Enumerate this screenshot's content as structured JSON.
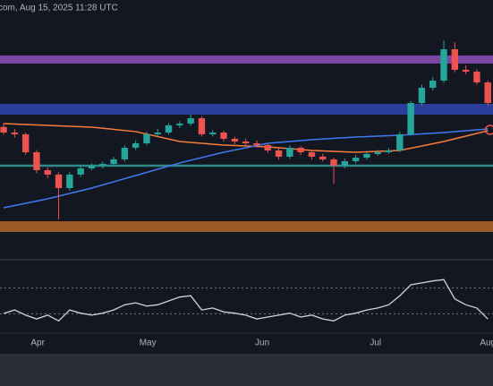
{
  "chart_data": {
    "type": "candlestick",
    "title": "com, Aug 15, 2025 11:28 UTC",
    "xlim": [
      -0.33,
      44.47
    ],
    "xticks": [
      {
        "value": 3.1,
        "label": "Apr"
      },
      {
        "value": 13.1,
        "label": "May"
      },
      {
        "value": 23.5,
        "label": "Jun"
      },
      {
        "value": 33.8,
        "label": "Jul"
      },
      {
        "value": 44,
        "label": "Aug"
      }
    ],
    "ylim": [
      1300,
      4000
    ],
    "up_color": "#26a69a",
    "down_color": "#ef5350",
    "open": [
      2680,
      2622,
      2604,
      2417,
      2231,
      2185,
      2045,
      2185,
      2250,
      2278,
      2296,
      2343,
      2464,
      2510,
      2604,
      2622,
      2697,
      2715,
      2771,
      2604,
      2622,
      2557,
      2529,
      2510,
      2492,
      2436,
      2371,
      2464,
      2417,
      2371,
      2343,
      2278,
      2324,
      2361,
      2399,
      2417,
      2436,
      2604,
      2929,
      3088,
      3162,
      3488,
      3274,
      3255,
      3143
    ],
    "high": [
      2720,
      2660,
      2620,
      2440,
      2260,
      2210,
      2210,
      2280,
      2300,
      2320,
      2370,
      2490,
      2540,
      2630,
      2660,
      2720,
      2740,
      2810,
      2790,
      2650,
      2640,
      2580,
      2560,
      2540,
      2510,
      2460,
      2490,
      2480,
      2440,
      2400,
      2360,
      2350,
      2390,
      2420,
      2440,
      2460,
      2630,
      2950,
      3120,
      3200,
      3580,
      3560,
      3320,
      3280,
      3160
    ],
    "low": [
      2600,
      2570,
      2390,
      2200,
      2150,
      1720,
      2020,
      2160,
      2230,
      2250,
      2270,
      2320,
      2440,
      2490,
      2580,
      2600,
      2670,
      2690,
      2580,
      2580,
      2530,
      2500,
      2490,
      2470,
      2410,
      2340,
      2350,
      2390,
      2340,
      2320,
      2090,
      2250,
      2300,
      2340,
      2380,
      2400,
      2420,
      2590,
      2900,
      3060,
      3140,
      3250,
      3230,
      3120,
      2900
    ],
    "close": [
      2622,
      2604,
      2417,
      2231,
      2185,
      2045,
      2185,
      2250,
      2278,
      2296,
      2343,
      2464,
      2510,
      2604,
      2622,
      2697,
      2715,
      2771,
      2604,
      2622,
      2557,
      2529,
      2510,
      2492,
      2436,
      2371,
      2464,
      2417,
      2371,
      2343,
      2278,
      2324,
      2361,
      2399,
      2417,
      2436,
      2604,
      2929,
      3088,
      3162,
      3488,
      3274,
      3255,
      3143,
      2929
    ],
    "zones": [
      {
        "low": 3339,
        "high": 3423,
        "color": "#8e4fb8"
      },
      {
        "low": 2808,
        "high": 2920,
        "color": "#2f45b0"
      },
      {
        "low": 1589,
        "high": 1700,
        "color": "#b5682c"
      }
    ],
    "levels": [
      {
        "value": 2278,
        "color": "#2e8a8a"
      }
    ],
    "series": [
      {
        "color": "#f57c3b",
        "x": [
          0,
          4,
          8,
          12,
          16,
          20,
          24,
          28,
          32,
          36,
          40,
          44
        ],
        "values": [
          2715,
          2697,
          2678,
          2632,
          2529,
          2492,
          2473,
          2436,
          2417,
          2436,
          2529,
          2641
        ]
      },
      {
        "color": "#3f7bf0",
        "x": [
          0,
          4,
          8,
          12,
          16,
          20,
          24,
          28,
          32,
          36,
          40,
          44
        ],
        "values": [
          1840,
          1933,
          2045,
          2175,
          2306,
          2417,
          2510,
          2548,
          2576,
          2594,
          2622,
          2659
        ]
      }
    ],
    "marker": {
      "x": 44.2,
      "y": 2650,
      "color": "#ef5350"
    },
    "rsi": {
      "color": "#d1d4dc",
      "ylim": [
        0,
        100
      ],
      "levels": [
        70,
        30
      ],
      "values": [
        30.6,
        36,
        28,
        22,
        28,
        19,
        36,
        31,
        28,
        31,
        36,
        44,
        47,
        42,
        44,
        50,
        56,
        58,
        36,
        39,
        33,
        31,
        28,
        22,
        25,
        28,
        31,
        25,
        28,
        22,
        19,
        28,
        31,
        36,
        39,
        44,
        58,
        75,
        78,
        81,
        83,
        53,
        44,
        39,
        22
      ]
    }
  }
}
